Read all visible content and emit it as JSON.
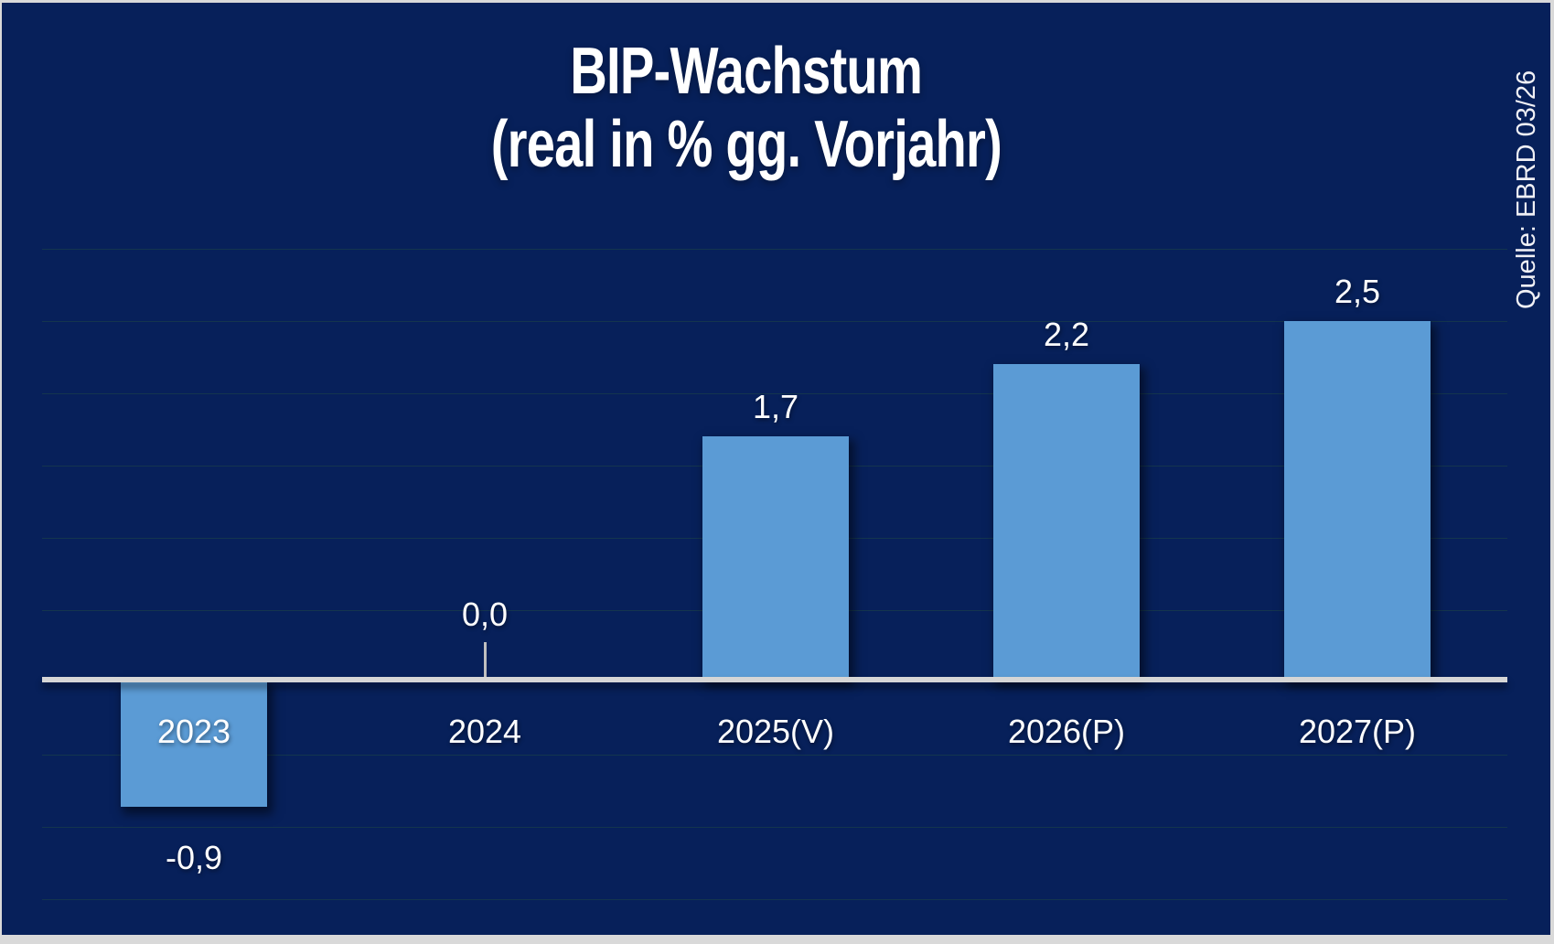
{
  "title": {
    "line1": "BIP-Wachstum",
    "line2": "(real in % gg. Vorjahr)"
  },
  "source": "Quelle: EBRD 03/26",
  "chart_data": {
    "type": "bar",
    "title": "BIP-Wachstum (real in % gg. Vorjahr)",
    "categories": [
      "2023",
      "2024",
      "2025(V)",
      "2026(P)",
      "2027(P)"
    ],
    "values": [
      -0.9,
      0.0,
      1.7,
      2.2,
      2.5
    ],
    "value_labels": [
      "-0,9",
      "0,0",
      "1,7",
      "2,2",
      "2,5"
    ],
    "xlabel": "",
    "ylabel": "",
    "ylim": [
      -1.5,
      3.0
    ],
    "gridline_step": 0.5,
    "grid": true,
    "legend": false,
    "colors": {
      "background": "#07205A",
      "bar": "#5B9BD5",
      "axis": "#D6D6D6",
      "tick": "#BFBFBF",
      "gridline": "#14354E",
      "text": "#FFFFFF",
      "frame": "#D9D9D9"
    }
  }
}
